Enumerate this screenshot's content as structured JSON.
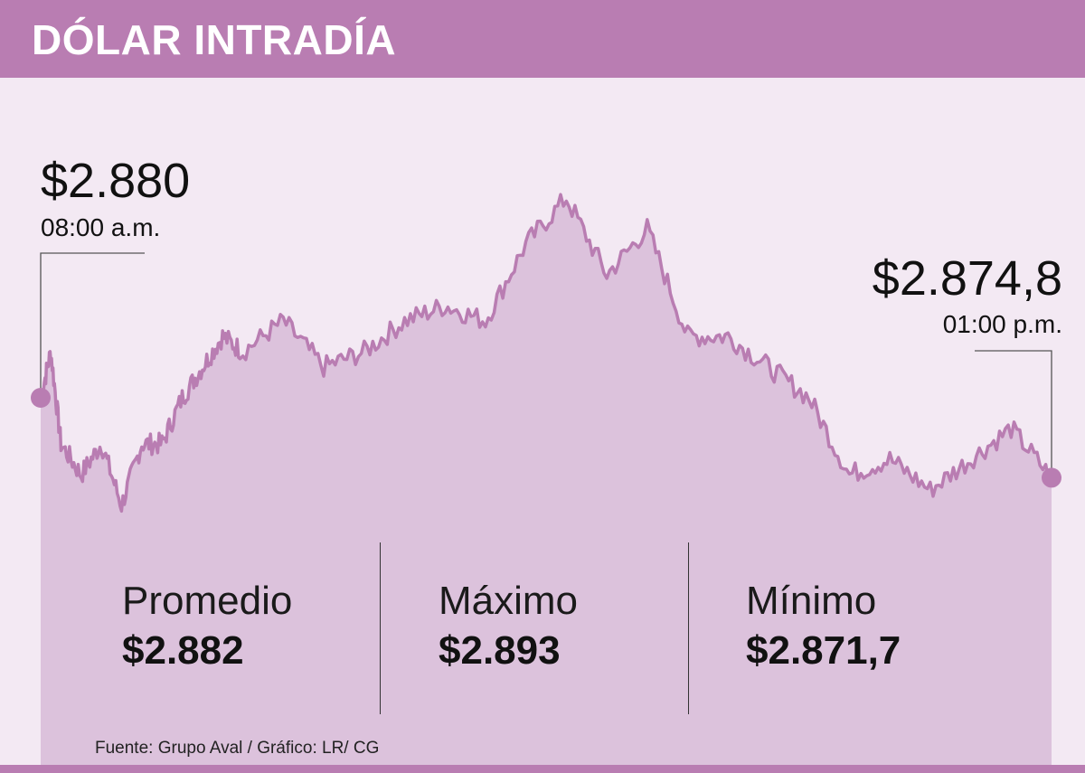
{
  "header": {
    "title": "DÓLAR INTRADÍA"
  },
  "colors": {
    "header": "#b97db2",
    "line": "#b97db2",
    "area": "#dcc2dc",
    "background": "#f3e9f3"
  },
  "start_label": {
    "value": "$2.880",
    "time": "08:00 a.m."
  },
  "end_label": {
    "value": "$2.874,8",
    "time": "01:00 p.m."
  },
  "stats": [
    {
      "name": "Promedio",
      "value": "$2.882"
    },
    {
      "name": "Máximo",
      "value": "$2.893"
    },
    {
      "name": "Mínimo",
      "value": "$2.871,7"
    }
  ],
  "source": "Fuente: Grupo Aval / Gráfico: LR/ CG",
  "chart_data": {
    "type": "area",
    "title": "DÓLAR INTRADÍA",
    "x_range": [
      "08:00 a.m.",
      "01:00 p.m."
    ],
    "ylim": [
      2870,
      2895
    ],
    "x": [
      0,
      0.05,
      0.1,
      0.2,
      0.3,
      0.4,
      0.5,
      0.6,
      0.7,
      0.8,
      0.9,
      1.0,
      1.2,
      1.4,
      1.6,
      1.8,
      2.0,
      2.2,
      2.4,
      2.6,
      2.8,
      3.0,
      3.2,
      3.4,
      3.6,
      3.8,
      4.0,
      4.2,
      4.4,
      4.6,
      4.8,
      5.0
    ],
    "y": [
      2880,
      2883,
      2877,
      2875,
      2877,
      2873,
      2877,
      2877,
      2880,
      2882,
      2884,
      2883,
      2885,
      2882,
      2883,
      2885,
      2886,
      2885,
      2890,
      2893,
      2888,
      2891,
      2884,
      2884,
      2882,
      2880,
      2875,
      2876,
      2874,
      2876,
      2878,
      2874.8
    ]
  }
}
